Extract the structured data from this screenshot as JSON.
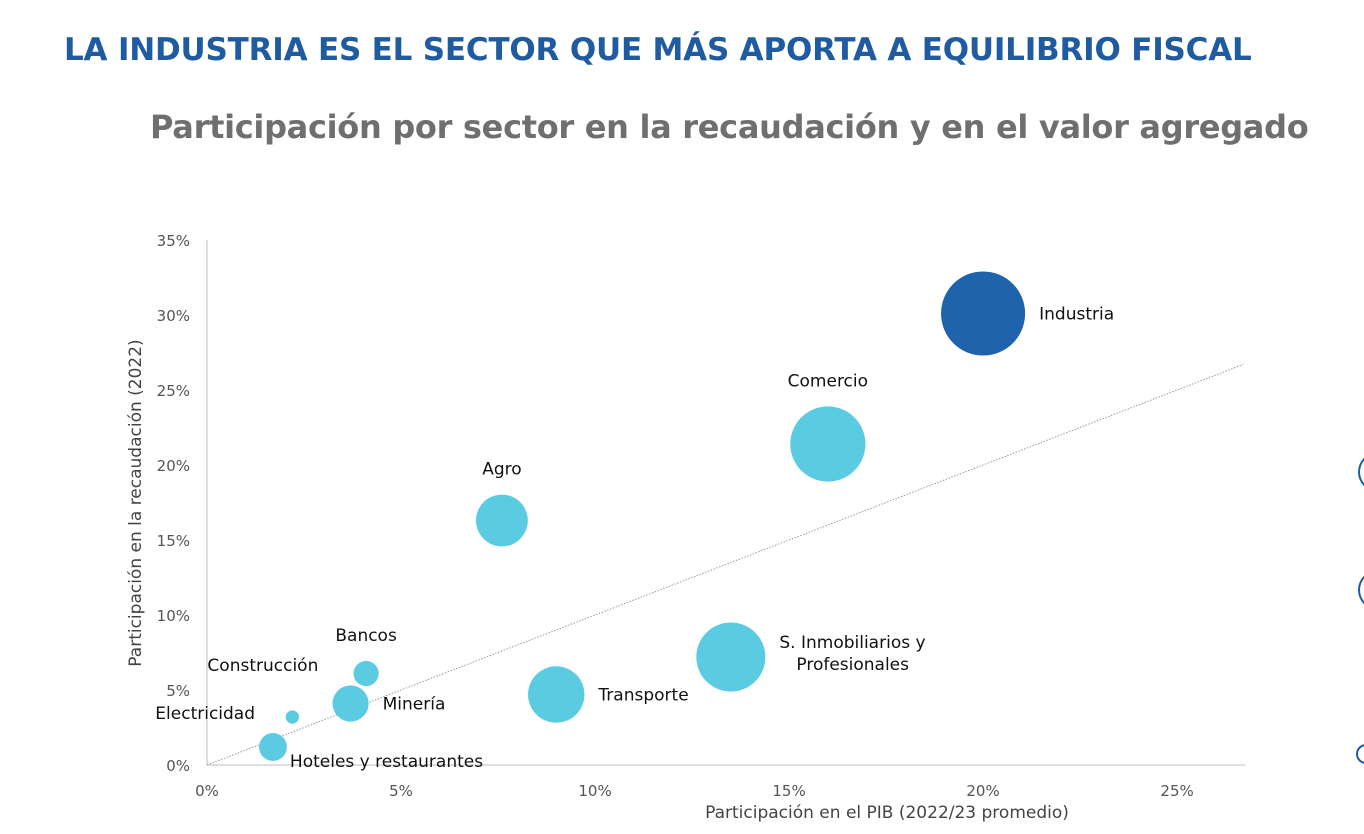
{
  "header": {
    "title": "LA INDUSTRIA ES EL SECTOR QUE MÁS APORTA A EQUILIBRIO FISCAL",
    "subtitle": "Participación por sector en la recaudación y en el valor agregado"
  },
  "colors": {
    "title": "#1f5ba0",
    "subtitle": "#6f6f6f",
    "highlight_bubble": "#1f63ad",
    "bubble": "#5bcbe2",
    "axis": "#bfbfbf",
    "reference_line": "#9a9a9a"
  },
  "chart_data": {
    "type": "scatter",
    "variant": "bubble",
    "title": "",
    "xlabel": "Participación en el PIB (2022/23 promedio)",
    "ylabel": "Participación en la recaudación (2022)",
    "xlim": [
      0,
      0.2675
    ],
    "ylim": [
      0,
      0.35
    ],
    "x_ticks": [
      0,
      0.05,
      0.1,
      0.15,
      0.2,
      0.25
    ],
    "x_tick_labels": [
      "0%",
      "5%",
      "10%",
      "15%",
      "20%",
      "25%"
    ],
    "y_ticks": [
      0,
      0.05,
      0.1,
      0.15,
      0.2,
      0.25,
      0.3,
      0.35
    ],
    "y_tick_labels": [
      "0%",
      "5%",
      "10%",
      "15%",
      "20%",
      "25%",
      "30%",
      "35%"
    ],
    "grid": false,
    "legend": "none",
    "reference_line": {
      "kind": "y=x",
      "from": [
        0,
        0
      ],
      "to": [
        0.267,
        0.267
      ]
    },
    "points": [
      {
        "label": "Industria",
        "x": 0.2,
        "y": 0.301,
        "size": 0.2,
        "highlight": true,
        "label_pos": "right"
      },
      {
        "label": "Comercio",
        "x": 0.16,
        "y": 0.214,
        "size": 0.16,
        "highlight": false,
        "label_pos": "top"
      },
      {
        "label": "Agro",
        "x": 0.076,
        "y": 0.163,
        "size": 0.076,
        "highlight": false,
        "label_pos": "top"
      },
      {
        "label": "S. Inmobiliarios y Profesionales",
        "label_lines": [
          "S. Inmobiliarios y",
          "Profesionales"
        ],
        "x": 0.135,
        "y": 0.072,
        "size": 0.135,
        "highlight": false,
        "label_pos": "right"
      },
      {
        "label": "Transporte",
        "x": 0.09,
        "y": 0.047,
        "size": 0.09,
        "highlight": false,
        "label_pos": "right"
      },
      {
        "label": "Minería",
        "x": 0.037,
        "y": 0.041,
        "size": 0.037,
        "highlight": false,
        "label_pos": "right"
      },
      {
        "label": "Bancos",
        "x": 0.041,
        "y": 0.061,
        "size": 0.018,
        "highlight": false,
        "label_pos": "top"
      },
      {
        "label": "Construcción",
        "x": 0.022,
        "y": 0.032,
        "size": 0.005,
        "highlight": false,
        "label_pos": "top-left"
      },
      {
        "label": "Electricidad",
        "x": 0.017,
        "y": 0.012,
        "size": 0.022,
        "highlight": false,
        "label_pos": "left"
      },
      {
        "label": "Hoteles y restaurantes",
        "x": 0.017,
        "y": 0.012,
        "size": 0.022,
        "highlight": false,
        "label_pos": "bottom-right"
      }
    ]
  }
}
